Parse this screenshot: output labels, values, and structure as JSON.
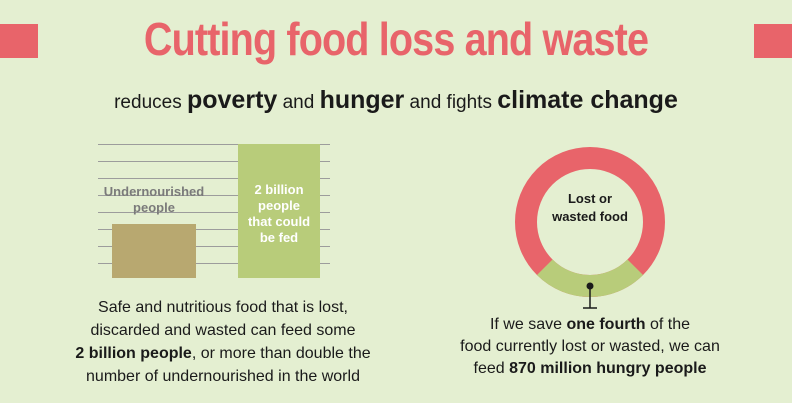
{
  "header": {
    "title": "Cutting food loss and waste",
    "subtitle_1": "reduces ",
    "subtitle_bold_1": "poverty",
    "subtitle_2": " and ",
    "subtitle_bold_2": "hunger",
    "subtitle_3": " and fights ",
    "subtitle_bold_3": "climate change"
  },
  "bars": {
    "undernourished_label_1": "Undernourished",
    "undernourished_label_2": "people",
    "fed_label_1": "2 billion",
    "fed_label_2": "people",
    "fed_label_3": "that could",
    "fed_label_4": "be fed"
  },
  "left_caption": {
    "line_1": "Safe and nutritious food that is lost,",
    "line_2": "discarded and wasted can feed some",
    "bold": "2 billion people",
    "line_3": ", or more than double the",
    "line_4": "number of undernourished in the world"
  },
  "ring": {
    "label_1": "Lost or",
    "label_2": "wasted food",
    "saved_fraction": 0.25
  },
  "right_caption": {
    "pre": "If we save ",
    "bold_1": "one fourth",
    "mid": " of the",
    "line_2": "food currently lost or wasted, we can",
    "line_3_pre": "feed ",
    "bold_2": "870 million hungry people"
  },
  "colors": {
    "accent_red": "#e8646a",
    "green": "#b8cc7a",
    "tan": "#b8a870",
    "background": "#e4efd1"
  }
}
